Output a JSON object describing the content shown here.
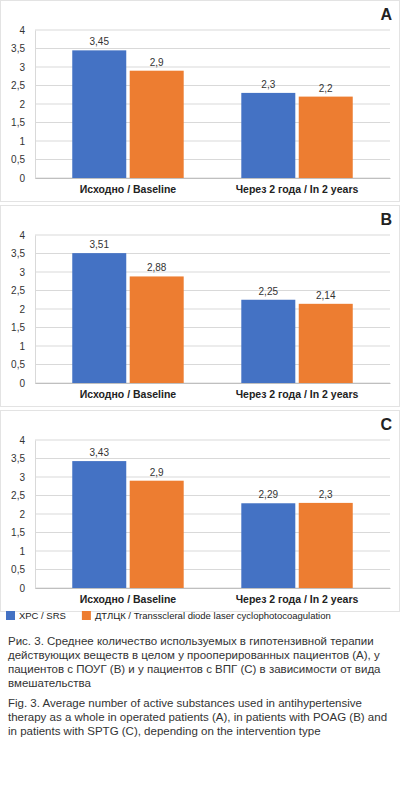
{
  "chart_data": [
    {
      "type": "bar",
      "title": "A",
      "categories": [
        "Исходно / Baseline",
        "Через 2 года / In 2 years"
      ],
      "series": [
        {
          "color": "#4472c4",
          "values": [
            3.45,
            2.3
          ],
          "value_labels": [
            "3,45",
            "2,3"
          ]
        },
        {
          "color": "#ed7d31",
          "values": [
            2.9,
            2.2
          ],
          "value_labels": [
            "2,9",
            "2,2"
          ]
        }
      ],
      "ylim": [
        0,
        4
      ],
      "yticks": [
        0,
        {
          "value": 0.5,
          "label": "0,5"
        },
        1,
        {
          "value": 1.5,
          "label": "1,5"
        },
        2,
        {
          "value": 2.5,
          "label": "2,5"
        },
        3,
        {
          "value": 3.5,
          "label": "3,5"
        },
        4
      ],
      "grid": true,
      "data_labels": true
    },
    {
      "type": "bar",
      "title": "B",
      "categories": [
        "Исходно / Baseline",
        "Через 2 года / In 2 years"
      ],
      "series": [
        {
          "color": "#4472c4",
          "values": [
            3.51,
            2.25
          ],
          "value_labels": [
            "3,51",
            "2,25"
          ]
        },
        {
          "color": "#ed7d31",
          "values": [
            2.88,
            2.14
          ],
          "value_labels": [
            "2,88",
            "2,14"
          ]
        }
      ],
      "ylim": [
        0,
        4
      ],
      "yticks": [
        0,
        {
          "value": 0.5,
          "label": "0,5"
        },
        1,
        {
          "value": 1.5,
          "label": "1,5"
        },
        2,
        {
          "value": 2.5,
          "label": "2,5"
        },
        3,
        {
          "value": 3.5,
          "label": "3,5"
        },
        4
      ],
      "grid": true,
      "data_labels": true
    },
    {
      "type": "bar",
      "title": "C",
      "categories": [
        "Исходно / Baseline",
        "Через 2 года / In 2 years"
      ],
      "series": [
        {
          "name": "ХРС / SRS",
          "color": "#4472c4",
          "values": [
            3.43,
            2.29
          ],
          "value_labels": [
            "3,43",
            "2,29"
          ]
        },
        {
          "name": "ДТЛЦК / Transscleral diode laser cyclophotocoagulation",
          "color": "#ed7d31",
          "values": [
            2.9,
            2.3
          ],
          "value_labels": [
            "2,9",
            "2,3"
          ]
        }
      ],
      "ylim": [
        0,
        4
      ],
      "yticks": [
        0,
        {
          "value": 0.5,
          "label": "0,5"
        },
        1,
        {
          "value": 1.5,
          "label": "1,5"
        },
        2,
        {
          "value": 2.5,
          "label": "2,5"
        },
        3,
        {
          "value": 3.5,
          "label": "3,5"
        },
        4
      ],
      "grid": true,
      "data_labels": true,
      "legend": "bottom"
    }
  ],
  "caption": {
    "ru": "Рис. 3. Среднее количество используемых в гипотензивной терапии действующих веществ в целом у прооперированных пациентов (А), у пациентов с ПОУГ (В) и у пациентов с ВПГ (С) в зависимости от вида вмешательства",
    "en": "Fig. 3. Average number of active substances used in antihypertensive therapy as a whole in operated patients (A), in patients with POAG (B) and in patients with SPTG (C), depending on the intervention type"
  }
}
